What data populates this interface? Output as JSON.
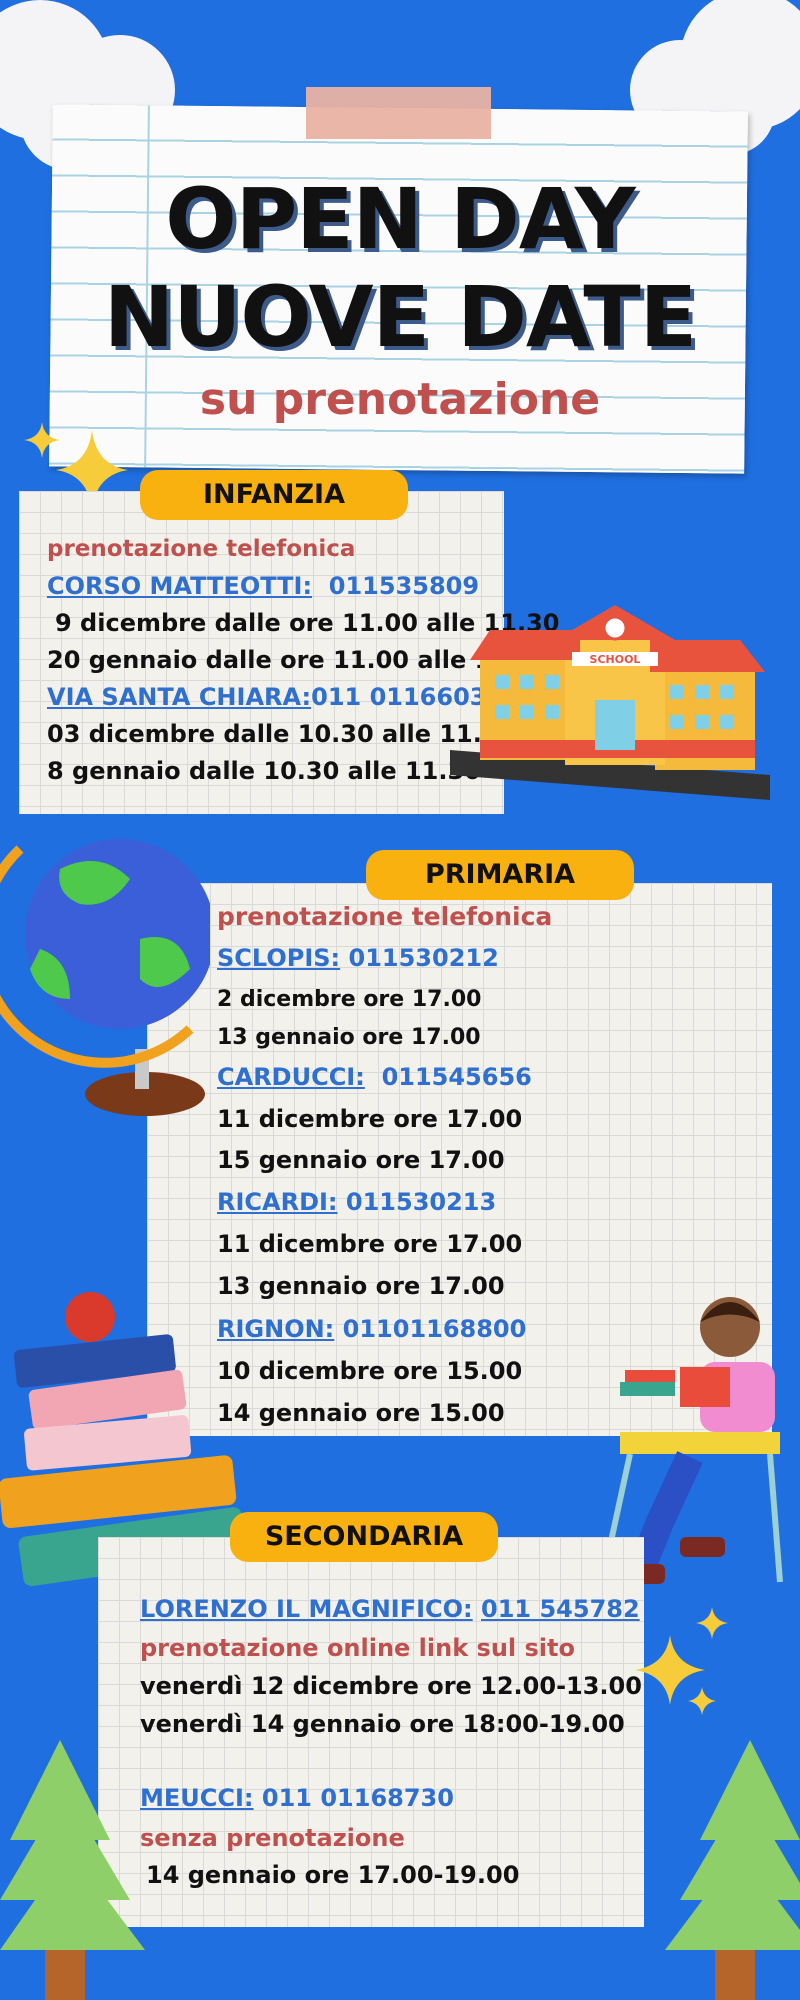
{
  "header": {
    "line1": "OPEN DAY",
    "line2": "NUOVE DATE",
    "subtitle": "su prenotazione"
  },
  "infanzia": {
    "label": "INFANZIA",
    "booking": "prenotazione telefonica",
    "schools": [
      {
        "name": "CORSO MATTEOTTI:",
        "phone": "011535809",
        "dates": [
          "9 dicembre dalle ore 11.00 alle 11.30",
          "20 gennaio dalle ore 11.00 alle 11.30"
        ]
      },
      {
        "name": "VIA SANTA CHIARA:",
        "phone": "011 01166030",
        "dates": [
          "03 dicembre dalle 10.30 alle 11.30",
          "8 gennaio dalle 10.30 alle 11.30"
        ]
      }
    ]
  },
  "primaria": {
    "label": "PRIMARIA",
    "booking": "prenotazione telefonica",
    "schools": [
      {
        "name": "SCLOPIS:",
        "phone": "011530212",
        "dates": [
          "2 dicembre ore 17.00",
          "13 gennaio ore 17.00"
        ]
      },
      {
        "name": "CARDUCCI:",
        "phone": "011545656",
        "dates": [
          "11 dicembre ore 17.00",
          "15 gennaio ore 17.00"
        ]
      },
      {
        "name": "RICARDI:",
        "phone": "011530213",
        "dates": [
          "11 dicembre ore 17.00",
          "13 gennaio ore 17.00"
        ]
      },
      {
        "name": "RIGNON:",
        "phone": "01101168800",
        "dates": [
          "10 dicembre ore 15.00",
          "14 gennaio ore 15.00"
        ]
      }
    ]
  },
  "secondaria": {
    "label": "SECONDARIA",
    "schools": [
      {
        "name": "LORENZO IL MAGNIFICO:",
        "phone": "011 545782",
        "note": "prenotazione online link sul sito",
        "dates": [
          "venerdì 12 dicembre ore 12.00-13.00",
          "venerdì 14 gennaio ore 18:00-19.00"
        ]
      },
      {
        "name": "MEUCCI:",
        "phone": "011 01168730",
        "note": "senza prenotazione",
        "dates": [
          "14 gennaio ore 17.00-19.00"
        ]
      }
    ]
  },
  "illustrations": {
    "school_sign": "SCHOOL"
  },
  "colors": {
    "background": "#1f6fe0",
    "pill": "#f9b10f",
    "accent_red": "#c0504d",
    "link_blue": "#2e6fd0"
  }
}
